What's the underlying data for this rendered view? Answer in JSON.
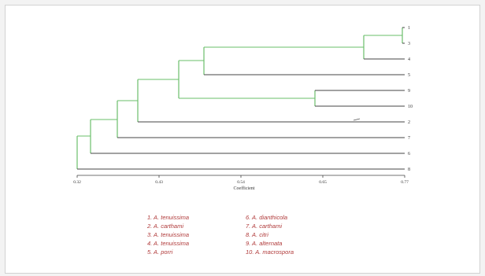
{
  "dendrogram": {
    "leaf_labels": [
      "1",
      "3",
      "4",
      "5",
      "9",
      "10",
      "2",
      "7",
      "6",
      "8"
    ],
    "axis_ticks": [
      "0.32",
      "0.43",
      "0.54",
      "0.65",
      "0.77"
    ],
    "axis_title": "Coefficient",
    "branch_color": "#6abf6a",
    "line_color": "#444444"
  },
  "legend": {
    "left": [
      "1. A. tenuissima",
      "2. A. carthami",
      "3. A. tenuissima",
      "4. A. tenuissima",
      "5. A. porri"
    ],
    "right": [
      "6. A. dianthicola",
      "7. A. carthami",
      "8. A. citri",
      "9. A. alternata",
      "10. A. macrospora"
    ]
  }
}
